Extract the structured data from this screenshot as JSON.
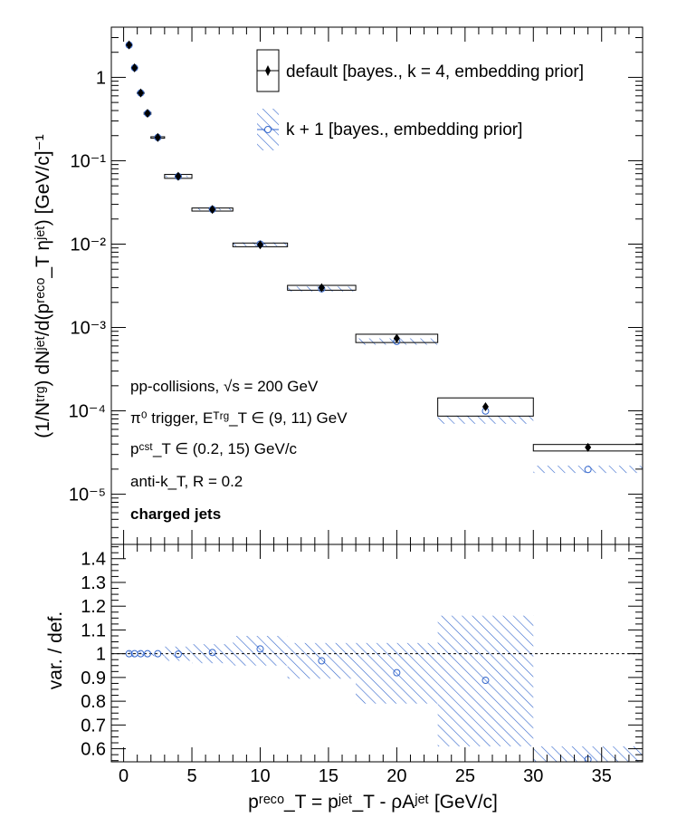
{
  "colors": {
    "default": "#000000",
    "variation": "#3366cc"
  },
  "legend": {
    "entries": [
      {
        "label": "default [bayes., k = 4, embedding prior]",
        "marker": "filled-diamond"
      },
      {
        "label": "k + 1 [bayes., embedding prior]",
        "marker": "open-circle"
      }
    ]
  },
  "annotations": {
    "system": "pp-collisions, √s = 200 GeV",
    "trigger": "π⁰ trigger, Eᵀʳᵍ_T ∈ (9, 11) GeV",
    "constituents": "pᶜˢᵗ_T ∈ (0.2, 15) GeV/c",
    "algorithm": "anti-k_T, R = 0.2",
    "jet_type": "charged jets"
  },
  "chart_data": [
    {
      "type": "scatter",
      "panel": "top",
      "ylabel": "(1/Nᵗʳᵍ) dNʲᵉᵗ/d(pʳᵉᶜᵒ_T ηʲᵉᵗ) [GeV/c]⁻¹",
      "yscale": "log",
      "xlim": [
        -0.9,
        38
      ],
      "ylim": [
        2.5e-06,
        4.0
      ],
      "ytick_labels": [
        "10⁻⁵",
        "10⁻⁴",
        "10⁻³",
        "10⁻²",
        "10⁻¹",
        "1"
      ],
      "bins": [
        [
          0.2,
          0.6
        ],
        [
          0.6,
          1.0
        ],
        [
          1.0,
          1.5
        ],
        [
          1.5,
          2.0
        ],
        [
          2.0,
          3.0
        ],
        [
          3.0,
          5.0
        ],
        [
          5.0,
          8.0
        ],
        [
          8.0,
          12.0
        ],
        [
          12.0,
          17.0
        ],
        [
          17.0,
          23.0
        ],
        [
          23.0,
          30.0
        ],
        [
          30.0,
          38.0
        ]
      ],
      "x": [
        0.4,
        0.8,
        1.25,
        1.75,
        2.5,
        4.0,
        6.5,
        10.0,
        14.5,
        20.0,
        26.5,
        34.0
      ],
      "series": [
        {
          "name": "default [bayes., k = 4, embedding prior]",
          "values": [
            2.45,
            1.3,
            0.65,
            0.37,
            0.19,
            0.065,
            0.026,
            0.0098,
            0.003,
            0.00074,
            0.000112,
            3.65e-05
          ],
          "sys_low": [
            2.4,
            1.27,
            0.64,
            0.36,
            0.186,
            0.0615,
            0.0249,
            0.0093,
            0.0028,
            0.00066,
            8.65e-05,
            3.3e-05
          ],
          "sys_high": [
            2.5,
            1.33,
            0.66,
            0.38,
            0.194,
            0.0685,
            0.0271,
            0.0103,
            0.0032,
            0.00083,
            0.000143,
            3.95e-05
          ]
        },
        {
          "name": "k + 1 [bayes., embedding prior]",
          "values": [
            2.44,
            1.3,
            0.65,
            0.37,
            0.19,
            0.0648,
            0.0261,
            0.01,
            0.00291,
            0.00068,
            9.95e-05,
            1.98e-05
          ],
          "band_low": [
            2.43,
            1.29,
            0.64,
            0.36,
            0.188,
            0.0635,
            0.0255,
            0.0095,
            0.0027,
            0.00062,
            7e-05,
            1.8e-05
          ],
          "band_high": [
            2.46,
            1.31,
            0.66,
            0.38,
            0.192,
            0.066,
            0.0268,
            0.0105,
            0.0031,
            0.00074,
            8.75e-05,
            2.2e-05
          ]
        }
      ]
    },
    {
      "type": "scatter",
      "panel": "bottom",
      "xlabel": "pʳᵉᶜᵒ_T = pʲᵉᵗ_T - ρAʲᵉᵗ [GeV/c]",
      "ylabel": "var. / def.",
      "xlim": [
        -0.9,
        38
      ],
      "ylim": [
        0.545,
        1.46
      ],
      "xticks": [
        0,
        5,
        10,
        15,
        20,
        25,
        30,
        35
      ],
      "yticks": [
        0.6,
        0.7,
        0.8,
        0.9,
        1.0,
        1.1,
        1.2,
        1.3,
        1.4
      ],
      "ytick_labels": [
        "0.6",
        "0.7",
        "0.8",
        "0.9",
        "1",
        "1.1",
        "1.2",
        "1.3",
        "1.4"
      ],
      "reference_line": 1.0,
      "bins": [
        [
          0.2,
          0.6
        ],
        [
          0.6,
          1.0
        ],
        [
          1.0,
          1.5
        ],
        [
          1.5,
          2.0
        ],
        [
          2.0,
          3.0
        ],
        [
          3.0,
          5.0
        ],
        [
          5.0,
          8.0
        ],
        [
          8.0,
          12.0
        ],
        [
          12.0,
          17.0
        ],
        [
          17.0,
          23.0
        ],
        [
          23.0,
          30.0
        ],
        [
          30.0,
          38.0
        ]
      ],
      "x": [
        0.4,
        0.8,
        1.25,
        1.75,
        2.5,
        4.0,
        6.5,
        10.0,
        14.5,
        20.0,
        26.5,
        34.0
      ],
      "series": [
        {
          "name": "k + 1 [bayes., embedding prior]",
          "values": [
            1.0,
            1.0,
            1.0,
            1.0,
            1.0,
            0.998,
            1.005,
            1.02,
            0.97,
            0.92,
            0.888,
            0.555
          ],
          "band_low": [
            0.99,
            0.99,
            0.99,
            0.99,
            0.99,
            0.97,
            0.96,
            0.95,
            0.895,
            0.79,
            0.61,
            0.5
          ],
          "band_high": [
            1.01,
            1.01,
            1.01,
            1.01,
            1.01,
            1.03,
            1.04,
            1.075,
            1.045,
            1.045,
            1.16,
            0.61
          ]
        }
      ]
    }
  ]
}
